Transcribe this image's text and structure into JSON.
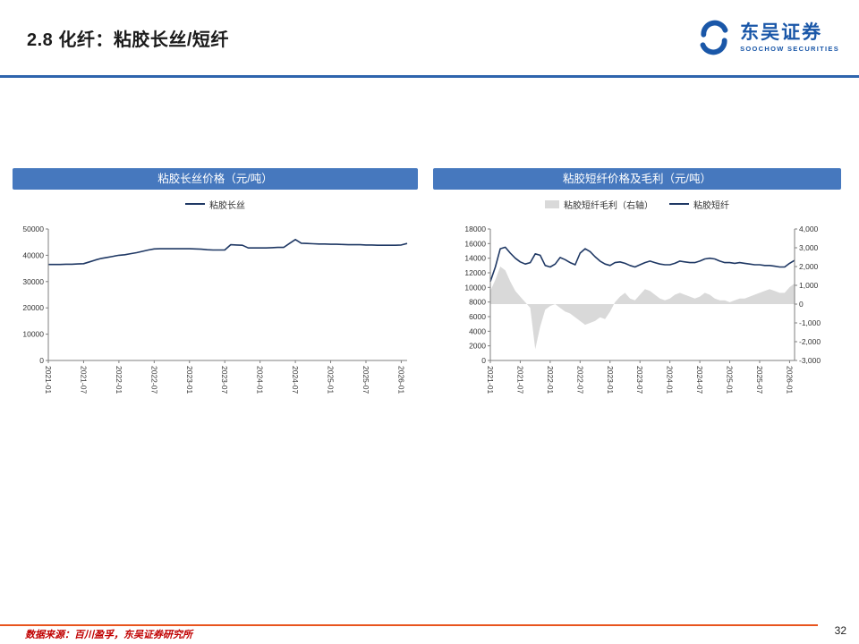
{
  "slide": {
    "title": "2.8 化纤：粘胶长丝/短纤",
    "page_number": "32",
    "source": "数据来源：百川盈孚，东吴证券研究所"
  },
  "logo": {
    "name_cn": "东吴证券",
    "name_en": "SOOCHOW SECURITIES"
  },
  "colors": {
    "accent_blue": "#4678be",
    "line_navy": "#1f3864",
    "area_gray": "#d9d9d9",
    "divider_blue": "#2e64ad",
    "footer_orange": "#e8541e",
    "source_red": "#c00000"
  },
  "chart_data": [
    {
      "type": "line",
      "title": "粘胶长丝价格（元/吨）",
      "legend": [
        {
          "kind": "line",
          "label": "粘胶长丝"
        }
      ],
      "x_tick_every": 6,
      "x": [
        "2021-01",
        "2021-02",
        "2021-03",
        "2021-04",
        "2021-05",
        "2021-06",
        "2021-07",
        "2021-08",
        "2021-09",
        "2021-10",
        "2021-11",
        "2021-12",
        "2022-01",
        "2022-02",
        "2022-03",
        "2022-04",
        "2022-05",
        "2022-06",
        "2022-07",
        "2022-08",
        "2022-09",
        "2022-10",
        "2022-11",
        "2022-12",
        "2023-01",
        "2023-02",
        "2023-03",
        "2023-04",
        "2023-05",
        "2023-06",
        "2023-07",
        "2023-08",
        "2023-09",
        "2023-10",
        "2023-11",
        "2023-12",
        "2024-01",
        "2024-02",
        "2024-03",
        "2024-04",
        "2024-05",
        "2024-06",
        "2024-07",
        "2024-08",
        "2024-09",
        "2024-10",
        "2024-11",
        "2024-12",
        "2025-01",
        "2025-02",
        "2025-03",
        "2025-04",
        "2025-05",
        "2025-06",
        "2025-07",
        "2025-08",
        "2025-09",
        "2025-10",
        "2025-11",
        "2025-12",
        "2026-01",
        "2026-02"
      ],
      "left_axis": {
        "min": 0,
        "max": 50000,
        "tick_labels": [
          "0",
          "10000",
          "20000",
          "30000",
          "40000",
          "50000"
        ]
      },
      "series": [
        {
          "name": "粘胶长丝",
          "kind": "line",
          "axis": "left",
          "values": [
            36500,
            36500,
            36500,
            36600,
            36600,
            36700,
            36800,
            37500,
            38200,
            38800,
            39200,
            39600,
            40000,
            40200,
            40600,
            41000,
            41500,
            42000,
            42400,
            42500,
            42500,
            42500,
            42500,
            42500,
            42500,
            42400,
            42300,
            42100,
            42000,
            42000,
            42000,
            44000,
            43900,
            43800,
            42800,
            42800,
            42800,
            42800,
            42900,
            43000,
            43000,
            44500,
            46000,
            44600,
            44500,
            44400,
            44300,
            44300,
            44200,
            44200,
            44100,
            44000,
            44000,
            44000,
            43900,
            43900,
            43800,
            43800,
            43800,
            43800,
            43900,
            44500
          ]
        }
      ]
    },
    {
      "type": "line+area",
      "title": "粘胶短纤价格及毛利（元/吨）",
      "legend": [
        {
          "kind": "area",
          "label": "粘胶短纤毛利（右轴）"
        },
        {
          "kind": "line",
          "label": "粘胶短纤"
        }
      ],
      "x_tick_every": 6,
      "x": [
        "2021-01",
        "2021-02",
        "2021-03",
        "2021-04",
        "2021-05",
        "2021-06",
        "2021-07",
        "2021-08",
        "2021-09",
        "2021-10",
        "2021-11",
        "2021-12",
        "2022-01",
        "2022-02",
        "2022-03",
        "2022-04",
        "2022-05",
        "2022-06",
        "2022-07",
        "2022-08",
        "2022-09",
        "2022-10",
        "2022-11",
        "2022-12",
        "2023-01",
        "2023-02",
        "2023-03",
        "2023-04",
        "2023-05",
        "2023-06",
        "2023-07",
        "2023-08",
        "2023-09",
        "2023-10",
        "2023-11",
        "2023-12",
        "2024-01",
        "2024-02",
        "2024-03",
        "2024-04",
        "2024-05",
        "2024-06",
        "2024-07",
        "2024-08",
        "2024-09",
        "2024-10",
        "2024-11",
        "2024-12",
        "2025-01",
        "2025-02",
        "2025-03",
        "2025-04",
        "2025-05",
        "2025-06",
        "2025-07",
        "2025-08",
        "2025-09",
        "2025-10",
        "2025-11",
        "2025-12",
        "2026-01",
        "2026-02"
      ],
      "left_axis": {
        "min": 0,
        "max": 18000,
        "tick_labels": [
          "0",
          "2000",
          "4000",
          "6000",
          "8000",
          "10000",
          "12000",
          "14000",
          "16000",
          "18000"
        ]
      },
      "right_axis": {
        "min": -3000,
        "max": 4000,
        "tick_labels": [
          "-3,000",
          "-2,000",
          "-1,000",
          "0",
          "1,000",
          "2,000",
          "3,000",
          "4,000"
        ]
      },
      "series": [
        {
          "name": "粘胶短纤毛利（右轴）",
          "kind": "area",
          "axis": "right",
          "values": [
            700,
            1300,
            2000,
            1800,
            1200,
            700,
            400,
            100,
            -200,
            -2400,
            -1200,
            -300,
            -100,
            0,
            -200,
            -400,
            -500,
            -700,
            -900,
            -1100,
            -1000,
            -900,
            -700,
            -800,
            -400,
            100,
            400,
            600,
            300,
            200,
            500,
            800,
            700,
            500,
            300,
            200,
            300,
            500,
            600,
            500,
            400,
            300,
            400,
            600,
            500,
            300,
            200,
            200,
            100,
            200,
            300,
            300,
            400,
            500,
            600,
            700,
            800,
            700,
            600,
            600,
            900,
            1100
          ]
        },
        {
          "name": "粘胶短纤",
          "kind": "line",
          "axis": "left",
          "values": [
            10800,
            12800,
            15300,
            15500,
            14700,
            14000,
            13500,
            13200,
            13400,
            14600,
            14400,
            13000,
            12800,
            13200,
            14100,
            13800,
            13400,
            13100,
            14700,
            15300,
            14900,
            14200,
            13600,
            13200,
            13000,
            13400,
            13500,
            13300,
            13000,
            12800,
            13100,
            13400,
            13600,
            13400,
            13200,
            13100,
            13100,
            13300,
            13600,
            13500,
            13400,
            13400,
            13600,
            13900,
            14000,
            13900,
            13600,
            13400,
            13400,
            13300,
            13400,
            13300,
            13200,
            13100,
            13100,
            13000,
            13000,
            12900,
            12800,
            12800,
            13300,
            13700
          ]
        }
      ]
    }
  ]
}
